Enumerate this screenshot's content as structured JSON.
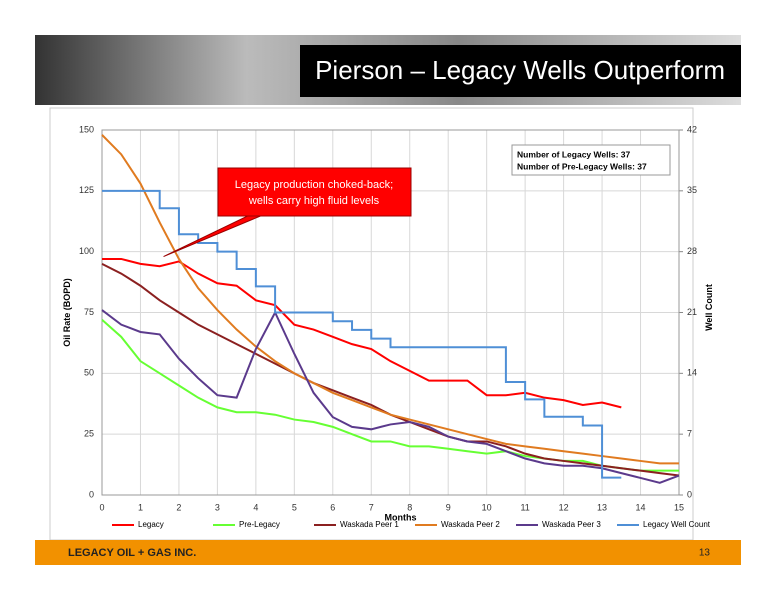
{
  "header": {
    "title": "Pierson – Legacy Wells Outperform"
  },
  "footer": {
    "company": "LEGACY OIL + GAS INC.",
    "page": "13"
  },
  "chart_data": {
    "type": "line",
    "x": [
      0,
      0.5,
      1,
      1.5,
      2,
      2.5,
      3,
      3.5,
      4,
      4.5,
      5,
      5.5,
      6,
      6.5,
      7,
      7.5,
      8,
      8.5,
      9,
      9.5,
      10,
      10.5,
      11,
      11.5,
      12,
      12.5,
      13,
      13.5,
      14,
      14.5,
      15
    ],
    "xlim": [
      0,
      15
    ],
    "xticks": [
      0,
      1,
      2,
      3,
      4,
      5,
      6,
      7,
      8,
      9,
      10,
      11,
      12,
      13,
      14,
      15
    ],
    "ylim": [
      0,
      150
    ],
    "yticks": [
      0,
      25,
      50,
      75,
      100,
      125,
      150
    ],
    "y2lim": [
      0,
      42
    ],
    "y2ticks": [
      0,
      7,
      14,
      21,
      28,
      35,
      42
    ],
    "x_label": "Months",
    "y_label": "Oil Rate (BOPD)",
    "y2_label": "Well Count",
    "grid": true,
    "legend": "bottom",
    "info_box": [
      "Number of Legacy Wells: 37",
      "Number of Pre-Legacy Wells: 37"
    ],
    "annotation": [
      "Legacy production choked-back;",
      "wells carry high fluid levels"
    ],
    "series": [
      {
        "name": "Legacy",
        "color": "#ff0000",
        "values": [
          97,
          97,
          95,
          94,
          96,
          91,
          87,
          86,
          80,
          78,
          70,
          68,
          65,
          62,
          60,
          55,
          51,
          47,
          47,
          47,
          41,
          41,
          42,
          40,
          39,
          37,
          38,
          36,
          null,
          null,
          null
        ]
      },
      {
        "name": "Pre-Legacy",
        "color": "#66ff33",
        "values": [
          72,
          65,
          55,
          50,
          45,
          40,
          36,
          34,
          34,
          33,
          31,
          30,
          28,
          25,
          22,
          22,
          20,
          20,
          19,
          18,
          17,
          18,
          16,
          15,
          14,
          14,
          12,
          11,
          10,
          10,
          10
        ]
      },
      {
        "name": "Waskada Peer 1",
        "color": "#8b2020",
        "values": [
          95,
          91,
          86,
          80,
          75,
          70,
          66,
          62,
          58,
          54,
          50,
          46,
          43,
          40,
          37,
          33,
          30,
          27,
          24,
          22,
          22,
          20,
          17,
          15,
          14,
          13,
          12,
          11,
          10,
          9,
          8
        ]
      },
      {
        "name": "Waskada Peer 2",
        "color": "#e07b20",
        "values": [
          148,
          140,
          128,
          112,
          97,
          85,
          76,
          68,
          61,
          55,
          50,
          46,
          42,
          39,
          36,
          33,
          31,
          29,
          27,
          25,
          23,
          21,
          20,
          19,
          18,
          17,
          16,
          15,
          14,
          13,
          13
        ]
      },
      {
        "name": "Waskada Peer 3",
        "color": "#5b3a8c",
        "values": [
          76,
          70,
          67,
          66,
          56,
          48,
          41,
          40,
          60,
          75,
          58,
          42,
          32,
          28,
          27,
          29,
          30,
          28,
          24,
          22,
          21,
          18,
          15,
          13,
          12,
          12,
          11,
          9,
          7,
          5,
          8
        ]
      },
      {
        "name": "Legacy Well Count",
        "color": "#4f8fd6",
        "axis": "y2",
        "values": [
          35,
          35,
          35,
          33,
          30,
          29,
          28,
          26,
          24,
          21,
          21,
          21,
          20,
          19,
          18,
          17,
          17,
          17,
          17,
          17,
          17,
          13,
          11,
          9,
          9,
          8,
          2,
          2,
          null,
          null,
          null
        ]
      }
    ]
  }
}
